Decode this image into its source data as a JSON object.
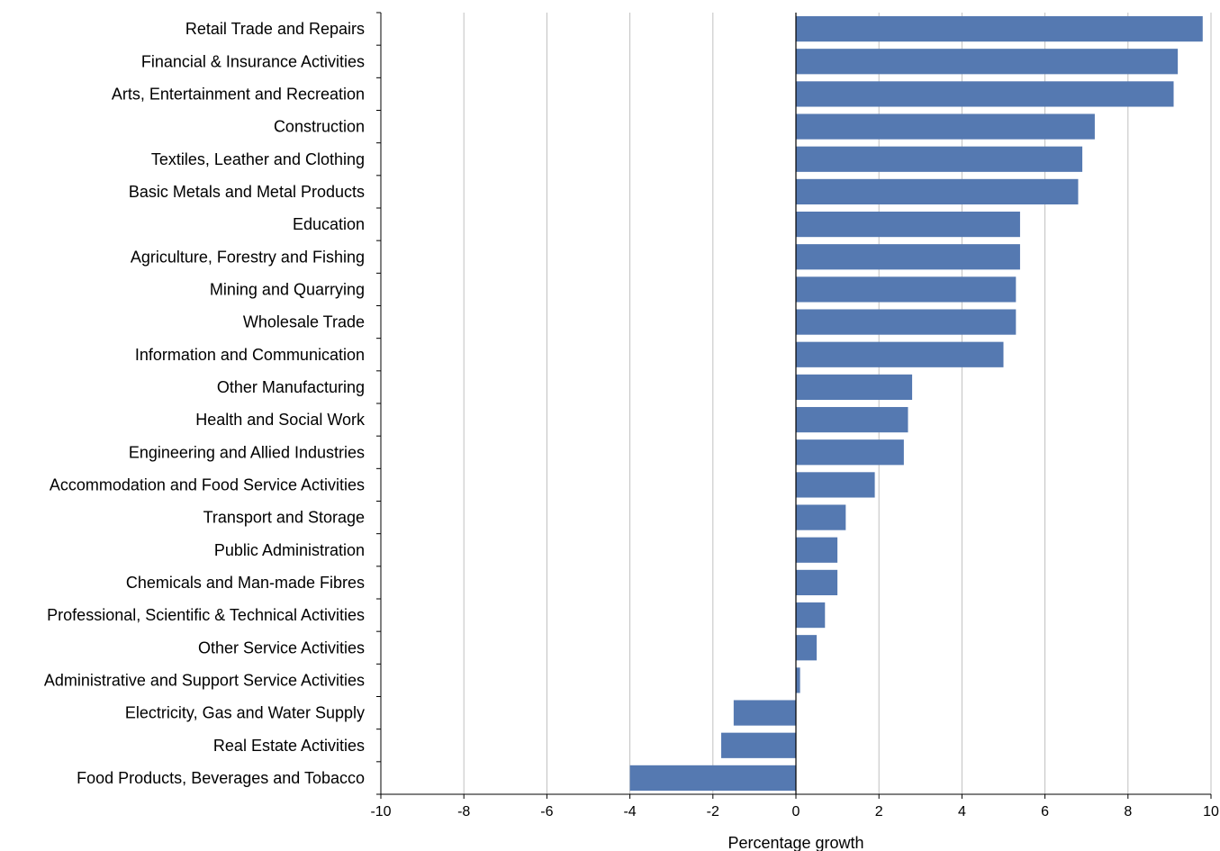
{
  "chart_data": {
    "type": "bar",
    "orientation": "horizontal",
    "categories": [
      "Retail Trade and Repairs",
      "Financial & Insurance Activities",
      "Arts, Entertainment and Recreation",
      "Construction",
      "Textiles, Leather and Clothing",
      "Basic Metals and Metal Products",
      "Education",
      "Agriculture, Forestry and Fishing",
      "Mining and Quarrying",
      "Wholesale Trade",
      "Information and Communication",
      "Other Manufacturing",
      "Health and Social Work",
      "Engineering and Allied Industries",
      "Accommodation and Food Service Activities",
      "Transport and Storage",
      "Public Administration",
      "Chemicals and Man-made Fibres",
      "Professional, Scientific & Technical Activities",
      "Other Service Activities",
      "Administrative and Support Service Activities",
      "Electricity, Gas and Water Supply",
      "Real Estate Activities",
      "Food Products, Beverages and Tobacco"
    ],
    "values": [
      9.8,
      9.2,
      9.1,
      7.2,
      6.9,
      6.8,
      5.4,
      5.4,
      5.3,
      5.3,
      5.0,
      2.8,
      2.7,
      2.6,
      1.9,
      1.2,
      1.0,
      1.0,
      0.7,
      0.5,
      0.1,
      -1.5,
      -1.8,
      -4.0
    ],
    "title": "",
    "xlabel": "Percentage growth",
    "ylabel": "",
    "xlim": [
      -10,
      10
    ],
    "xticks": [
      "-10",
      "-8",
      "-6",
      "-4",
      "-2",
      "0",
      "2",
      "4",
      "6",
      "8",
      "10"
    ],
    "grid": true,
    "legend": "none",
    "bar_color": "#5579b1"
  }
}
